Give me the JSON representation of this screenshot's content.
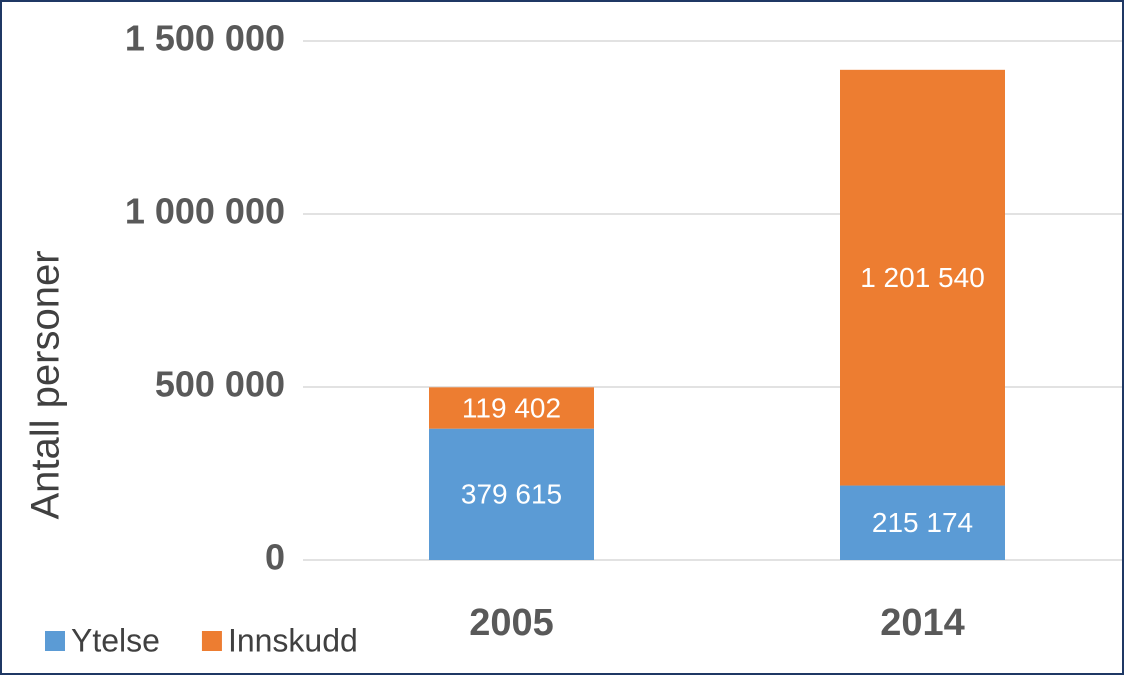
{
  "chart_data": {
    "type": "stacked_bar",
    "y_label": "Antall personer",
    "categories": [
      "2005",
      "2014"
    ],
    "series": [
      {
        "name": "Ytelse",
        "color": "#5b9bd5",
        "values": [
          379615,
          215174
        ],
        "value_labels": [
          "379 615",
          "215 174"
        ]
      },
      {
        "name": "Innskudd",
        "color": "#ed7d31",
        "values": [
          119402,
          1201540
        ],
        "value_labels": [
          "119 402",
          "1 201 540"
        ]
      }
    ],
    "ylim": [
      0,
      1500000
    ],
    "yticks": [
      0,
      {
        "value": 500000,
        "label": "500 000"
      },
      {
        "value": 1000000,
        "label": "1 000 000"
      },
      {
        "value": 1500000,
        "label": "1 500 000"
      }
    ],
    "grid": true,
    "legend": "bottom-left"
  }
}
